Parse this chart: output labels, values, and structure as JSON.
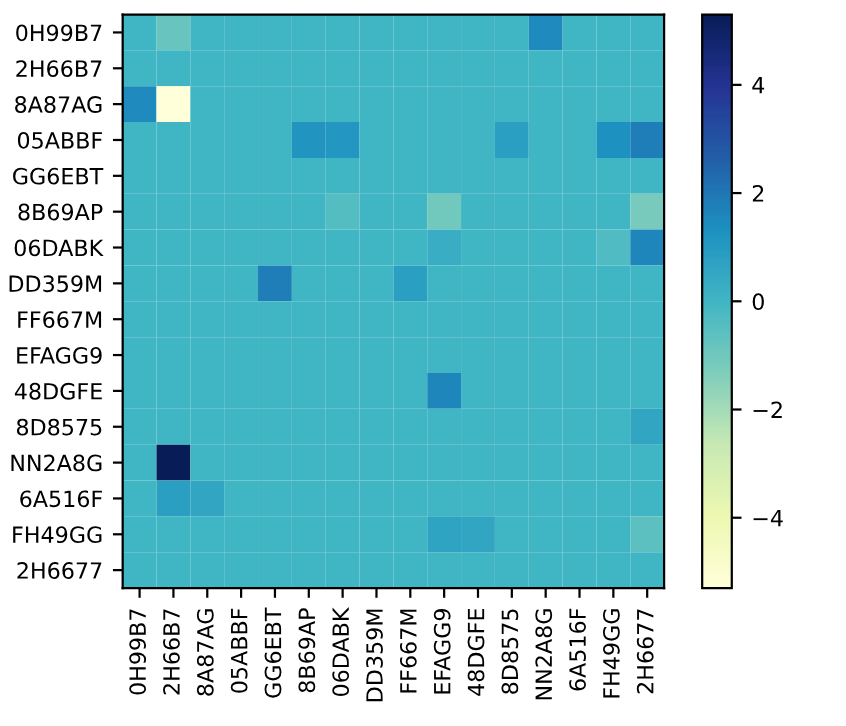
{
  "chart_data": {
    "type": "heatmap",
    "categories": [
      "0H99B7",
      "2H66B7",
      "8A87AG",
      "05ABBF",
      "GG6EBT",
      "8B69AP",
      "06DABK",
      "DD359M",
      "FF667M",
      "EFAGG9",
      "48DGFE",
      "8D8575",
      "NN2A8G",
      "6A516F",
      "FH49GG",
      "2H6677"
    ],
    "y_categories": [
      "0H99B7",
      "2H66B7",
      "8A87AG",
      "05ABBF",
      "GG6EBT",
      "8B69AP",
      "06DABK",
      "DD359M",
      "FF667M",
      "EFAGG9",
      "48DGFE",
      "8D8575",
      "NN2A8G",
      "6A516F",
      "FH49GG",
      "2H6677"
    ],
    "cells": [
      [
        0,
        -0.8,
        0,
        0,
        0,
        0,
        0,
        0,
        0,
        0,
        0,
        0,
        1.5,
        0,
        0,
        0
      ],
      [
        0,
        0,
        0,
        0,
        0,
        0,
        0,
        0,
        0,
        0,
        0,
        0,
        0,
        0,
        0,
        0
      ],
      [
        1.5,
        -5.3,
        0,
        0,
        0,
        0,
        0,
        0,
        0,
        0,
        0,
        0,
        0,
        0,
        0,
        0
      ],
      [
        0,
        0,
        0,
        0,
        0,
        1.2,
        1.1,
        0,
        0,
        0,
        0,
        0.8,
        0,
        0,
        1.3,
        1.8
      ],
      [
        0,
        0,
        0,
        0,
        0,
        0,
        0,
        0,
        0,
        0,
        0,
        0,
        0,
        0,
        0,
        0
      ],
      [
        0,
        0,
        0,
        0,
        0,
        0,
        -0.4,
        0,
        0,
        -1.0,
        0,
        0,
        0,
        0,
        0,
        -1.2
      ],
      [
        0,
        0,
        0,
        0,
        0,
        0,
        0,
        0,
        0,
        0.3,
        0,
        0,
        0,
        0,
        -0.3,
        1.6
      ],
      [
        0,
        0,
        0,
        0,
        1.8,
        0,
        0,
        0,
        0.8,
        0,
        0,
        0,
        0,
        0,
        0,
        0
      ],
      [
        0,
        0,
        0,
        0,
        0,
        0,
        0,
        0,
        0,
        0,
        0,
        0,
        0,
        0,
        0,
        0
      ],
      [
        0,
        0,
        0,
        0,
        0,
        0,
        0,
        0,
        0,
        0,
        0,
        0,
        0,
        0,
        0,
        0
      ],
      [
        0,
        0,
        0,
        0,
        0,
        0,
        0,
        0,
        0,
        1.6,
        0,
        0,
        0,
        0,
        0,
        0
      ],
      [
        0,
        0,
        0,
        0,
        0,
        0,
        0,
        0,
        0,
        0,
        0,
        0,
        0,
        0,
        0,
        0.6
      ],
      [
        0,
        5.3,
        0,
        0,
        0,
        0,
        0,
        0,
        0,
        0,
        0,
        0,
        0,
        0,
        0,
        0
      ],
      [
        0,
        0.8,
        0.6,
        0,
        0,
        0,
        0,
        0,
        0,
        0,
        0,
        0,
        0,
        0,
        0,
        0
      ],
      [
        0,
        0,
        0,
        0,
        0,
        0,
        0,
        0,
        0,
        0.7,
        0.6,
        0,
        0,
        0,
        0,
        -0.6
      ],
      [
        0,
        0,
        0,
        0,
        0,
        0,
        0,
        0,
        0,
        0,
        0,
        0,
        0,
        0,
        0,
        0
      ]
    ],
    "clim": [
      -5.3,
      5.3
    ],
    "cticks": [
      -4,
      -2,
      0,
      2,
      4
    ]
  }
}
